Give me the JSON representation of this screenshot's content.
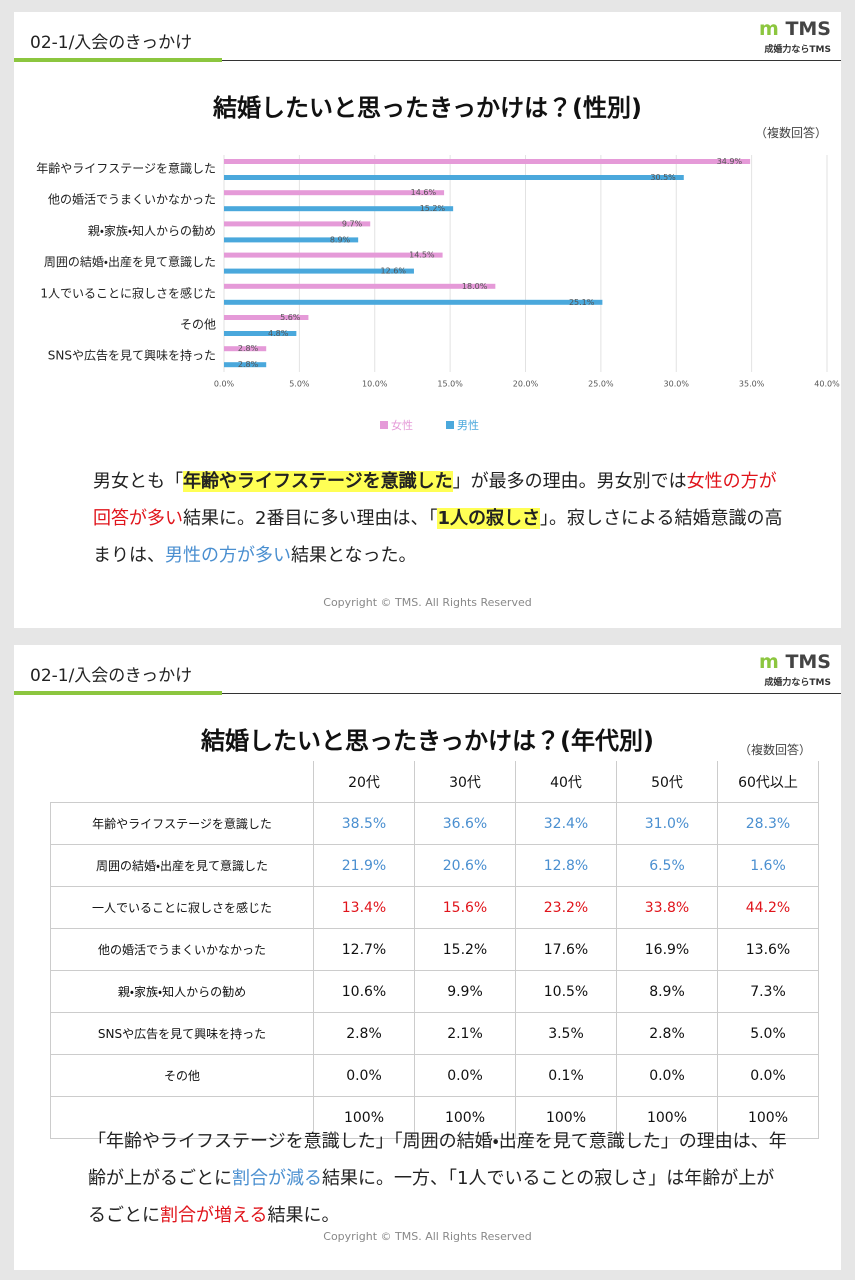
{
  "slide1": {
    "section": "02-1/入会のきっかけ",
    "logo": "TMS",
    "tagline": "成婚力ならTMS",
    "title": "結婚したいと思ったきっかけは？(性別)",
    "note": "（複数回答）",
    "summary": [
      {
        "text": "男女とも「"
      },
      {
        "text": "年齢やライフステージを意識した",
        "style": "highlight"
      },
      {
        "text": "」が最多の理由。男女別では"
      },
      {
        "text": "女性の方が回答が多い",
        "style": "red"
      },
      {
        "text": "結果に。2番目に多い理由は、「"
      },
      {
        "text": "1人の寂しさ",
        "style": "highlight"
      },
      {
        "text": "」。寂しさによる結婚意識の高まりは、"
      },
      {
        "text": "男性の方が多い",
        "style": "blue"
      },
      {
        "text": "結果となった。"
      }
    ],
    "copyright": "Copyright © TMS. All Rights Reserved"
  },
  "chart_data": {
    "type": "hbar",
    "categories": [
      "年齢やライフステージを意識した",
      "他の婚活でうまくいかなかった",
      "親・家族・知人からの勧め",
      "周囲の結婚・出産を見て意識した",
      "1人でいることに寂しさを感じた",
      "その他",
      "SNSや広告を見て興味を持った"
    ],
    "series": [
      {
        "name": "女性",
        "color": "#e59ad8",
        "values": [
          34.9,
          14.6,
          9.7,
          14.5,
          18.0,
          5.6,
          2.8
        ],
        "value_labels": [
          "34.9%",
          "14.6%",
          "9.7%",
          "14.5%",
          "18.0%",
          "5.6%",
          "2.8%"
        ]
      },
      {
        "name": "男性",
        "color": "#4aa8dc",
        "values": [
          30.5,
          15.2,
          8.9,
          12.6,
          25.1,
          4.8,
          2.8
        ],
        "value_labels": [
          "30.5%",
          "15.2%",
          "8.9%",
          "12.6%",
          "25.1%",
          "4.8%",
          "2.8%"
        ]
      }
    ],
    "xlim": [
      0,
      40
    ],
    "xticks": [
      {
        "value": 0,
        "label": "0.0%"
      },
      {
        "value": 5,
        "label": "5.0%"
      },
      {
        "value": 10,
        "label": "10.0%"
      },
      {
        "value": 15,
        "label": "15.0%"
      },
      {
        "value": 20,
        "label": "20.0%"
      },
      {
        "value": 25,
        "label": "25.0%"
      },
      {
        "value": 30,
        "label": "30.0%"
      },
      {
        "value": 35,
        "label": "35.0%"
      },
      {
        "value": 40,
        "label": "40.0%"
      }
    ],
    "grid": true,
    "legend": "bottom"
  },
  "slide2": {
    "section": "02-1/入会のきっかけ",
    "logo": "TMS",
    "tagline": "成婚力ならTMS",
    "title": "結婚したいと思ったきっかけは？(年代別)",
    "note": "（複数回答）",
    "table": {
      "columns": [
        "20代",
        "30代",
        "40代",
        "50代",
        "60代以上"
      ],
      "rows": [
        {
          "label": "年齢やライフステージを意識した",
          "color": "blue",
          "values": [
            "38.5%",
            "36.6%",
            "32.4%",
            "31.0%",
            "28.3%"
          ]
        },
        {
          "label": "周囲の結婚・出産を見て意識した",
          "color": "blue",
          "values": [
            "21.9%",
            "20.6%",
            "12.8%",
            "6.5%",
            "1.6%"
          ]
        },
        {
          "label": "一人でいることに寂しさを感じた",
          "color": "red",
          "values": [
            "13.4%",
            "15.6%",
            "23.2%",
            "33.8%",
            "44.2%"
          ]
        },
        {
          "label": "他の婚活でうまくいかなかった",
          "values": [
            "12.7%",
            "15.2%",
            "17.6%",
            "16.9%",
            "13.6%"
          ]
        },
        {
          "label": "親・家族・知人からの勧め",
          "values": [
            "10.6%",
            "9.9%",
            "10.5%",
            "8.9%",
            "7.3%"
          ]
        },
        {
          "label": "SNSや広告を見て興味を持った",
          "values": [
            "2.8%",
            "2.1%",
            "3.5%",
            "2.8%",
            "5.0%"
          ]
        },
        {
          "label": "その他",
          "values": [
            "0.0%",
            "0.0%",
            "0.1%",
            "0.0%",
            "0.0%"
          ]
        },
        {
          "values": [
            "100%",
            "100%",
            "100%",
            "100%",
            "100%"
          ]
        }
      ]
    },
    "summary": [
      {
        "text": "「年齢やライフステージを意識した」「周囲の結婚・出産を見て意識した」の理由は、年齢が上がるごとに"
      },
      {
        "text": "割合が減る",
        "style": "blue"
      },
      {
        "text": "結果に。一方、「1人でいることの寂しさ」は年齢が上がるごとに"
      },
      {
        "text": "割合が増える",
        "style": "red"
      },
      {
        "text": "結果に。"
      }
    ],
    "copyright": "Copyright © TMS. All Rights Reserved"
  }
}
